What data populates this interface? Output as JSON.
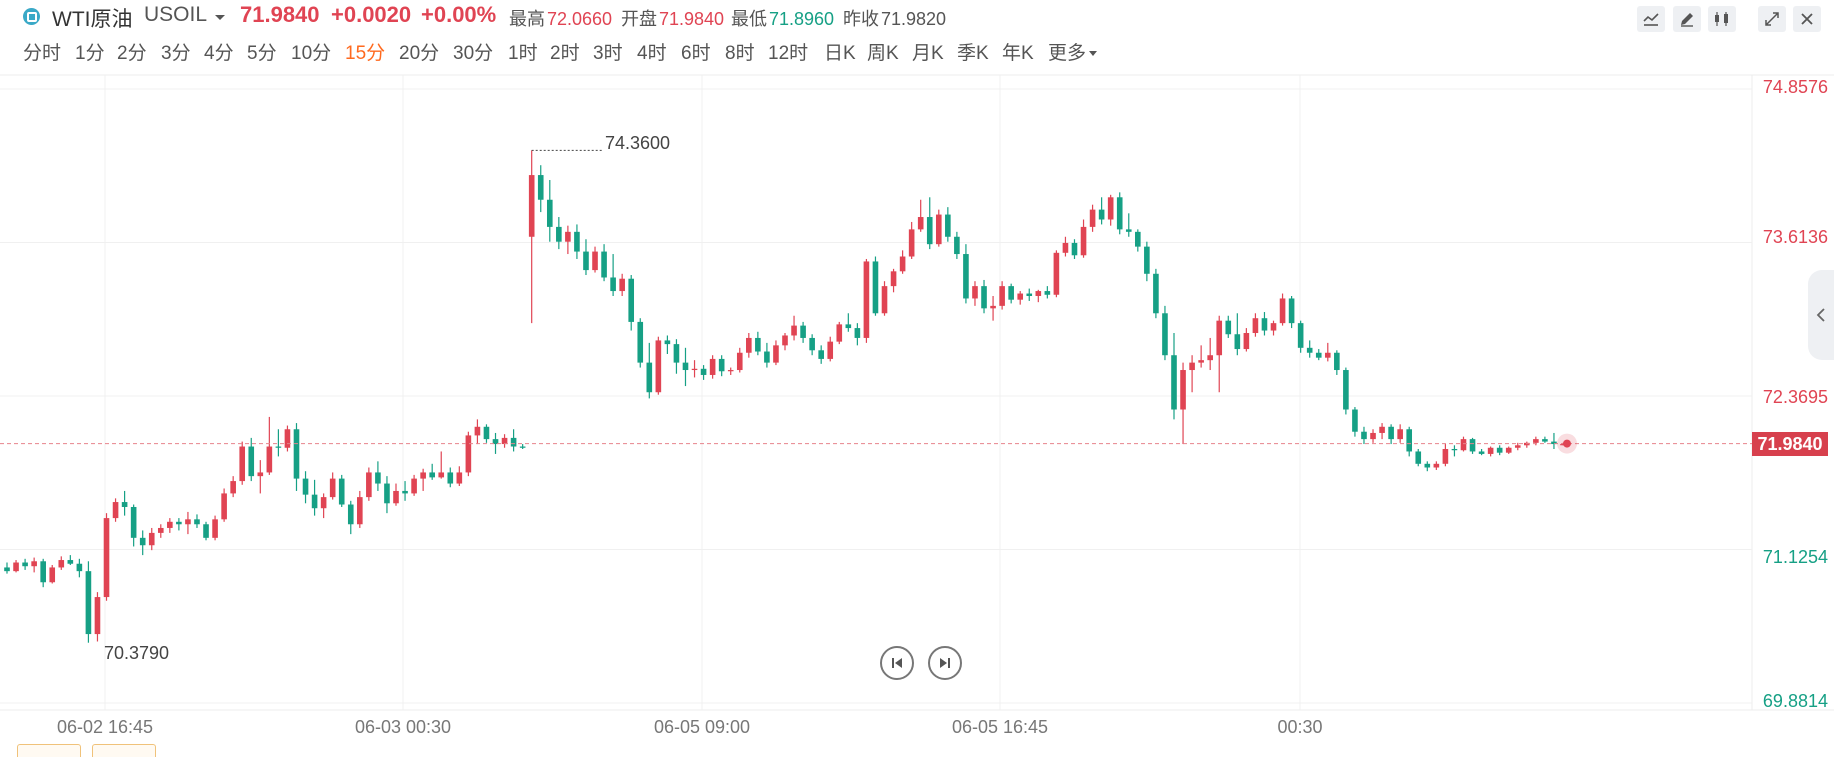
{
  "header": {
    "symbol_icon": "instrument-icon",
    "name": "WTI原油",
    "code": "USOIL",
    "last": "71.9840",
    "change": "+0.0020",
    "change_pct": "+0.00%",
    "stats": [
      {
        "label": "最高",
        "value": "72.0660",
        "tone": "up"
      },
      {
        "label": "开盘",
        "value": "71.9840",
        "tone": "up"
      },
      {
        "label": "最低",
        "value": "71.8960",
        "tone": "down"
      },
      {
        "label": "昨收",
        "value": "71.9820",
        "tone": "neutral"
      }
    ],
    "tools": [
      "indicator-icon",
      "draw-pen-icon",
      "candle-type-icon",
      "fullscreen-icon",
      "close-icon"
    ]
  },
  "periods": [
    "分时",
    "1分",
    "2分",
    "3分",
    "4分",
    "5分",
    "10分",
    "15分",
    "20分",
    "30分",
    "1时",
    "2时",
    "3时",
    "4时",
    "6时",
    "8时",
    "12时",
    "日K",
    "周K",
    "月K",
    "季K",
    "年K",
    "更多"
  ],
  "active_period": "15分",
  "colors": {
    "up": "#e04453",
    "down": "#16a085",
    "grid": "#f0f0f0",
    "last_line": "#e7838c"
  },
  "chart_data": {
    "type": "candlestick",
    "y_axis_labels": [
      {
        "value": "74.8576",
        "tone": "up"
      },
      {
        "value": "73.6136",
        "tone": "up"
      },
      {
        "value": "72.3695",
        "tone": "up"
      },
      {
        "value": "71.1254",
        "tone": "down"
      },
      {
        "value": "69.8814",
        "tone": "down"
      }
    ],
    "ylim": [
      69.8814,
      74.8576
    ],
    "last_price": "71.9840",
    "x_axis_labels": [
      "06-02 16:45",
      "06-03 00:30",
      "06-05 09:00",
      "06-05 16:45",
      "00:30"
    ],
    "high_marker": "74.3600",
    "low_marker": "70.3790",
    "candles": [
      [
        70.98,
        71.02,
        70.93,
        70.95
      ],
      [
        70.95,
        71.04,
        70.94,
        71.02
      ],
      [
        71.02,
        71.05,
        70.96,
        70.99
      ],
      [
        70.99,
        71.06,
        70.94,
        71.03
      ],
      [
        71.03,
        71.05,
        70.82,
        70.86
      ],
      [
        70.86,
        71.0,
        70.85,
        70.98
      ],
      [
        70.98,
        71.07,
        70.96,
        71.04
      ],
      [
        71.04,
        71.08,
        71.0,
        71.01
      ],
      [
        71.01,
        71.05,
        70.9,
        70.95
      ],
      [
        70.95,
        71.03,
        70.37,
        70.44
      ],
      [
        70.44,
        70.78,
        70.38,
        70.74
      ],
      [
        70.74,
        71.42,
        70.71,
        71.38
      ],
      [
        71.38,
        71.54,
        71.35,
        71.51
      ],
      [
        71.51,
        71.6,
        71.4,
        71.47
      ],
      [
        71.47,
        71.49,
        71.15,
        71.22
      ],
      [
        71.22,
        71.28,
        71.08,
        71.16
      ],
      [
        71.16,
        71.3,
        71.12,
        71.26
      ],
      [
        71.26,
        71.33,
        71.22,
        71.3
      ],
      [
        71.3,
        71.38,
        71.26,
        71.35
      ],
      [
        71.35,
        71.38,
        71.28,
        71.33
      ],
      [
        71.33,
        71.43,
        71.25,
        71.37
      ],
      [
        71.37,
        71.41,
        71.3,
        71.33
      ],
      [
        71.33,
        71.35,
        71.2,
        71.22
      ],
      [
        71.22,
        71.4,
        71.2,
        71.37
      ],
      [
        71.37,
        71.62,
        71.35,
        71.58
      ],
      [
        71.58,
        71.72,
        71.55,
        71.68
      ],
      [
        71.68,
        72.0,
        71.65,
        71.96
      ],
      [
        71.96,
        72.03,
        71.68,
        71.72
      ],
      [
        71.72,
        71.85,
        71.58,
        71.75
      ],
      [
        71.75,
        72.2,
        71.73,
        71.96
      ],
      [
        71.96,
        72.1,
        71.88,
        71.95
      ],
      [
        71.95,
        72.13,
        71.92,
        72.1
      ],
      [
        72.1,
        72.15,
        71.6,
        71.7
      ],
      [
        71.7,
        71.76,
        71.5,
        71.57
      ],
      [
        71.57,
        71.69,
        71.4,
        71.46
      ],
      [
        71.46,
        71.58,
        71.38,
        71.55
      ],
      [
        71.55,
        71.75,
        71.53,
        71.7
      ],
      [
        71.7,
        71.73,
        71.47,
        71.49
      ],
      [
        71.49,
        71.52,
        71.25,
        71.33
      ],
      [
        71.33,
        71.6,
        71.3,
        71.55
      ],
      [
        71.55,
        71.79,
        71.52,
        71.75
      ],
      [
        71.75,
        71.84,
        71.6,
        71.66
      ],
      [
        71.66,
        71.72,
        71.42,
        71.5
      ],
      [
        71.5,
        71.66,
        71.48,
        71.6
      ],
      [
        71.6,
        71.68,
        71.52,
        71.58
      ],
      [
        71.58,
        71.73,
        71.56,
        71.7
      ],
      [
        71.7,
        71.78,
        71.6,
        71.75
      ],
      [
        71.75,
        71.82,
        71.69,
        71.71
      ],
      [
        71.71,
        71.92,
        71.7,
        71.75
      ],
      [
        71.75,
        71.79,
        71.63,
        71.66
      ],
      [
        71.66,
        71.8,
        71.64,
        71.75
      ],
      [
        71.75,
        72.08,
        71.72,
        72.05
      ],
      [
        72.05,
        72.18,
        71.98,
        72.12
      ],
      [
        72.12,
        72.14,
        71.99,
        72.02
      ],
      [
        72.02,
        72.07,
        71.9,
        71.98
      ],
      [
        71.98,
        72.06,
        71.95,
        72.03
      ],
      [
        72.03,
        72.1,
        71.92,
        71.96
      ],
      [
        71.96,
        71.98,
        71.94,
        71.95
      ],
      [
        73.66,
        74.36,
        72.96,
        74.16
      ],
      [
        74.16,
        74.24,
        73.86,
        73.96
      ],
      [
        73.96,
        74.12,
        73.62,
        73.74
      ],
      [
        73.74,
        73.82,
        73.56,
        73.62
      ],
      [
        73.62,
        73.75,
        73.52,
        73.7
      ],
      [
        73.7,
        73.76,
        73.48,
        73.54
      ],
      [
        73.54,
        73.64,
        73.35,
        73.39
      ],
      [
        73.39,
        73.58,
        73.37,
        73.54
      ],
      [
        73.54,
        73.6,
        73.3,
        73.33
      ],
      [
        73.33,
        73.52,
        73.18,
        73.22
      ],
      [
        73.22,
        73.36,
        73.18,
        73.32
      ],
      [
        73.32,
        73.35,
        72.9,
        72.97
      ],
      [
        72.97,
        73.0,
        72.6,
        72.64
      ],
      [
        72.64,
        72.8,
        72.35,
        72.4
      ],
      [
        72.4,
        72.85,
        72.38,
        72.82
      ],
      [
        72.82,
        72.86,
        72.71,
        72.79
      ],
      [
        72.79,
        72.83,
        72.55,
        72.64
      ],
      [
        72.64,
        72.76,
        72.45,
        72.58
      ],
      [
        72.58,
        72.66,
        72.52,
        72.59
      ],
      [
        72.59,
        72.62,
        72.5,
        72.54
      ],
      [
        72.54,
        72.7,
        72.51,
        72.67
      ],
      [
        72.67,
        72.7,
        72.53,
        72.57
      ],
      [
        72.57,
        72.6,
        72.54,
        72.58
      ],
      [
        72.58,
        72.76,
        72.56,
        72.72
      ],
      [
        72.72,
        72.88,
        72.68,
        72.84
      ],
      [
        72.84,
        72.89,
        72.7,
        72.73
      ],
      [
        72.73,
        72.8,
        72.6,
        72.64
      ],
      [
        72.64,
        72.82,
        72.62,
        72.78
      ],
      [
        72.78,
        72.88,
        72.74,
        72.86
      ],
      [
        72.86,
        73.02,
        72.82,
        72.94
      ],
      [
        72.94,
        72.97,
        72.8,
        72.84
      ],
      [
        72.84,
        72.87,
        72.7,
        72.74
      ],
      [
        72.74,
        72.78,
        72.63,
        72.67
      ],
      [
        72.67,
        72.85,
        72.65,
        72.81
      ],
      [
        72.81,
        72.97,
        72.79,
        72.95
      ],
      [
        72.95,
        73.04,
        72.89,
        72.92
      ],
      [
        72.92,
        72.96,
        72.78,
        72.84
      ],
      [
        72.84,
        73.48,
        72.8,
        73.46
      ],
      [
        73.46,
        73.5,
        73.02,
        73.04
      ],
      [
        73.04,
        73.3,
        73.02,
        73.26
      ],
      [
        73.26,
        73.4,
        73.21,
        73.38
      ],
      [
        73.38,
        73.55,
        73.36,
        73.5
      ],
      [
        73.5,
        73.78,
        73.48,
        73.72
      ],
      [
        73.72,
        73.96,
        73.7,
        73.82
      ],
      [
        73.82,
        73.98,
        73.56,
        73.6
      ],
      [
        73.6,
        73.88,
        73.58,
        73.84
      ],
      [
        73.84,
        73.9,
        73.62,
        73.66
      ],
      [
        73.66,
        73.7,
        73.48,
        73.52
      ],
      [
        73.52,
        73.6,
        73.12,
        73.16
      ],
      [
        73.16,
        73.3,
        73.1,
        73.26
      ],
      [
        73.26,
        73.31,
        73.04,
        73.08
      ],
      [
        73.08,
        73.18,
        72.98,
        73.1
      ],
      [
        73.1,
        73.3,
        73.07,
        73.26
      ],
      [
        73.26,
        73.28,
        73.12,
        73.15
      ],
      [
        73.15,
        73.22,
        73.11,
        73.2
      ],
      [
        73.2,
        73.24,
        73.14,
        73.18
      ],
      [
        73.18,
        73.23,
        73.13,
        73.22
      ],
      [
        73.22,
        73.26,
        73.16,
        73.19
      ],
      [
        73.19,
        73.55,
        73.17,
        73.53
      ],
      [
        73.53,
        73.66,
        73.5,
        73.61
      ],
      [
        73.61,
        73.64,
        73.48,
        73.51
      ],
      [
        73.51,
        73.8,
        73.49,
        73.74
      ],
      [
        73.74,
        73.92,
        73.7,
        73.88
      ],
      [
        73.88,
        73.98,
        73.76,
        73.8
      ],
      [
        73.8,
        74.0,
        73.75,
        73.98
      ],
      [
        73.98,
        74.02,
        73.68,
        73.72
      ],
      [
        73.72,
        73.85,
        73.66,
        73.7
      ],
      [
        73.7,
        73.72,
        73.54,
        73.58
      ],
      [
        73.58,
        73.62,
        73.3,
        73.36
      ],
      [
        73.36,
        73.4,
        73.0,
        73.04
      ],
      [
        73.04,
        73.1,
        72.66,
        72.7
      ],
      [
        72.7,
        72.88,
        72.18,
        72.26
      ],
      [
        72.26,
        72.64,
        71.98,
        72.58
      ],
      [
        72.58,
        72.7,
        72.4,
        72.64
      ],
      [
        72.64,
        72.78,
        72.6,
        72.66
      ],
      [
        72.66,
        72.84,
        72.58,
        72.7
      ],
      [
        72.7,
        73.02,
        72.4,
        72.98
      ],
      [
        72.98,
        73.02,
        72.84,
        72.87
      ],
      [
        72.87,
        73.04,
        72.7,
        72.75
      ],
      [
        72.75,
        72.92,
        72.73,
        72.88
      ],
      [
        72.88,
        73.04,
        72.85,
        73.0
      ],
      [
        73.0,
        73.05,
        72.86,
        72.9
      ],
      [
        72.9,
        72.98,
        72.86,
        72.96
      ],
      [
        72.96,
        73.2,
        72.94,
        73.16
      ],
      [
        73.16,
        73.18,
        72.92,
        72.96
      ],
      [
        72.96,
        72.98,
        72.72,
        72.76
      ],
      [
        72.76,
        72.82,
        72.68,
        72.72
      ],
      [
        72.72,
        72.75,
        72.66,
        72.68
      ],
      [
        72.68,
        72.8,
        72.65,
        72.72
      ],
      [
        72.72,
        72.74,
        72.54,
        72.58
      ],
      [
        72.58,
        72.6,
        72.22,
        72.26
      ],
      [
        72.26,
        72.28,
        72.04,
        72.08
      ],
      [
        72.08,
        72.12,
        71.98,
        72.02
      ],
      [
        72.02,
        72.1,
        71.99,
        72.07
      ],
      [
        72.07,
        72.15,
        72.02,
        72.12
      ],
      [
        72.12,
        72.14,
        71.98,
        72.02
      ],
      [
        72.02,
        72.14,
        71.99,
        72.1
      ],
      [
        72.1,
        72.12,
        71.88,
        71.92
      ],
      [
        71.92,
        71.94,
        71.8,
        71.82
      ],
      [
        71.82,
        71.84,
        71.76,
        71.79
      ],
      [
        71.79,
        71.84,
        71.77,
        71.82
      ],
      [
        71.82,
        71.98,
        71.8,
        71.94
      ],
      [
        71.94,
        71.97,
        71.88,
        71.93
      ],
      [
        71.93,
        72.04,
        71.92,
        72.02
      ],
      [
        72.02,
        72.03,
        71.9,
        71.92
      ],
      [
        71.92,
        71.94,
        71.89,
        71.9
      ],
      [
        71.9,
        71.96,
        71.88,
        71.95
      ],
      [
        71.95,
        71.97,
        71.89,
        71.91
      ],
      [
        71.91,
        71.96,
        71.9,
        71.95
      ],
      [
        71.95,
        71.99,
        71.93,
        71.97
      ],
      [
        71.97,
        72.0,
        71.95,
        71.99
      ],
      [
        71.99,
        72.04,
        71.97,
        72.02
      ],
      [
        72.02,
        72.04,
        71.99,
        72.0
      ],
      [
        72.0,
        72.07,
        71.94,
        71.98
      ],
      [
        71.98,
        71.99,
        71.97,
        71.98
      ]
    ]
  },
  "nav": {
    "prev_icon": "skip-previous-icon",
    "next_icon": "skip-next-icon"
  },
  "side_tab_icon": "chevron-left-icon"
}
